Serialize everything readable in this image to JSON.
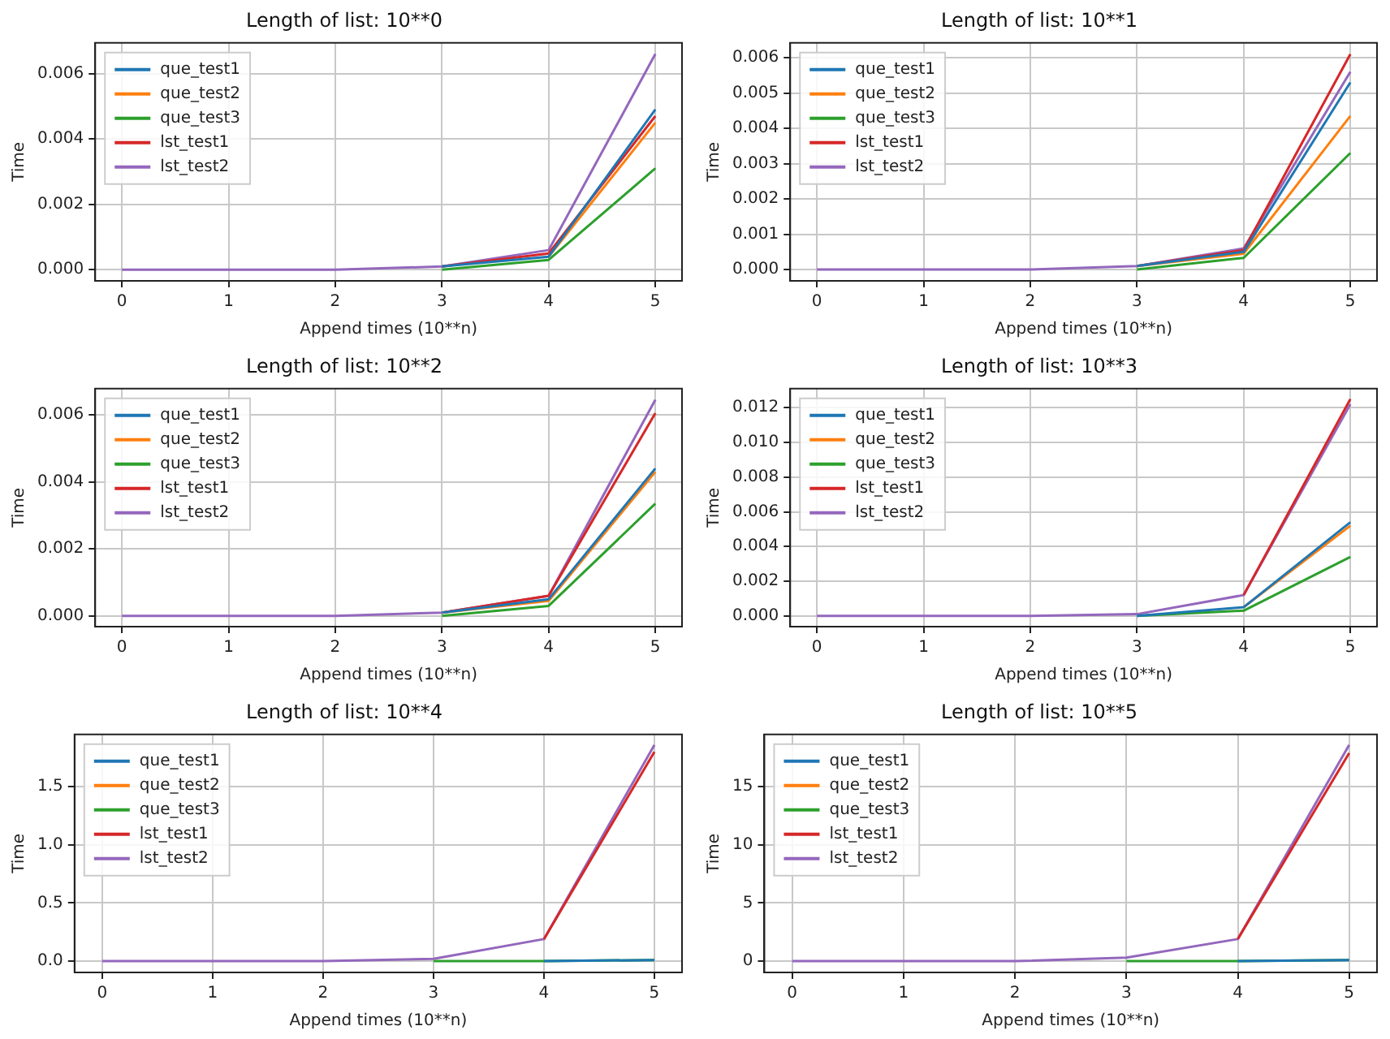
{
  "chart_data": [
    {
      "type": "line",
      "title": "Length of list: 10**0",
      "xlabel": "Append times (10**n)",
      "ylabel": "Time",
      "x": [
        0,
        1,
        2,
        3,
        4,
        5
      ],
      "xlim": [
        -0.25,
        5.25
      ],
      "xticks": [
        0,
        1,
        2,
        3,
        4,
        5
      ],
      "ylim": [
        -0.00034,
        0.00694
      ],
      "yticks": [
        {
          "value": 0,
          "label": "0.000"
        },
        {
          "value": 0.002,
          "label": "0.002"
        },
        {
          "value": 0.004,
          "label": "0.004"
        },
        {
          "value": 0.006,
          "label": "0.006"
        }
      ],
      "grid": true,
      "legend": "top left",
      "line_style": "solid",
      "series": [
        {
          "name": "que_test1",
          "color": "#1f77b4",
          "values": [
            null,
            null,
            null,
            0.0001,
            0.0004,
            0.0049
          ]
        },
        {
          "name": "que_test2",
          "color": "#ff7f0e",
          "values": [
            null,
            null,
            null,
            null,
            0.0004,
            0.0045
          ]
        },
        {
          "name": "que_test3",
          "color": "#2ca02c",
          "values": [
            null,
            null,
            null,
            0,
            0.0003,
            0.0031
          ]
        },
        {
          "name": "lst_test1",
          "color": "#d62728",
          "values": [
            null,
            null,
            null,
            0.0001,
            0.0005,
            0.0047
          ]
        },
        {
          "name": "lst_test2",
          "color": "#9467bd",
          "values": [
            0,
            0,
            0,
            0.0001,
            0.0006,
            0.0066
          ]
        }
      ]
    },
    {
      "type": "line",
      "title": "Length of list: 10**1",
      "xlabel": "Append times (10**n)",
      "ylabel": "Time",
      "x": [
        0,
        1,
        2,
        3,
        4,
        5
      ],
      "xlim": [
        -0.25,
        5.25
      ],
      "xticks": [
        0,
        1,
        2,
        3,
        4,
        5
      ],
      "ylim": [
        -0.00032,
        0.00642
      ],
      "yticks": [
        {
          "value": 0,
          "label": "0.000"
        },
        {
          "value": 0.001,
          "label": "0.001"
        },
        {
          "value": 0.002,
          "label": "0.002"
        },
        {
          "value": 0.003,
          "label": "0.003"
        },
        {
          "value": 0.004,
          "label": "0.004"
        },
        {
          "value": 0.005,
          "label": "0.005"
        },
        {
          "value": 0.006,
          "label": "0.006"
        }
      ],
      "grid": true,
      "legend": "top left",
      "line_style": "solid",
      "series": [
        {
          "name": "que_test1",
          "color": "#1f77b4",
          "values": [
            null,
            null,
            null,
            0.0001,
            0.0005,
            0.0053
          ]
        },
        {
          "name": "que_test2",
          "color": "#ff7f0e",
          "values": [
            null,
            null,
            null,
            0.0001,
            0.00045,
            0.00435
          ]
        },
        {
          "name": "que_test3",
          "color": "#2ca02c",
          "values": [
            null,
            null,
            null,
            0,
            0.00033,
            0.0033
          ]
        },
        {
          "name": "lst_test1",
          "color": "#d62728",
          "values": [
            null,
            null,
            null,
            0.0001,
            0.00055,
            0.0061
          ]
        },
        {
          "name": "lst_test2",
          "color": "#9467bd",
          "values": [
            0,
            0,
            0,
            0.0001,
            0.0006,
            0.0056
          ]
        }
      ]
    },
    {
      "type": "line",
      "title": "Length of list: 10**2",
      "xlabel": "Append times (10**n)",
      "ylabel": "Time",
      "x": [
        0,
        1,
        2,
        3,
        4,
        5
      ],
      "xlim": [
        -0.25,
        5.25
      ],
      "xticks": [
        0,
        1,
        2,
        3,
        4,
        5
      ],
      "ylim": [
        -0.00032,
        0.00678
      ],
      "yticks": [
        {
          "value": 0,
          "label": "0.000"
        },
        {
          "value": 0.002,
          "label": "0.002"
        },
        {
          "value": 0.004,
          "label": "0.004"
        },
        {
          "value": 0.006,
          "label": "0.006"
        }
      ],
      "grid": true,
      "legend": "top left",
      "line_style": "solid",
      "series": [
        {
          "name": "que_test1",
          "color": "#1f77b4",
          "values": [
            null,
            null,
            null,
            0.0001,
            0.0005,
            0.0044
          ]
        },
        {
          "name": "que_test2",
          "color": "#ff7f0e",
          "values": [
            null,
            null,
            null,
            0.0001,
            0.00045,
            0.0043
          ]
        },
        {
          "name": "que_test3",
          "color": "#2ca02c",
          "values": [
            null,
            null,
            null,
            0,
            0.0003,
            0.00335
          ]
        },
        {
          "name": "lst_test1",
          "color": "#d62728",
          "values": [
            null,
            null,
            null,
            0.0001,
            0.0006,
            0.00605
          ]
        },
        {
          "name": "lst_test2",
          "color": "#9467bd",
          "values": [
            0,
            0,
            0,
            0.0001,
            0.0006,
            0.00645
          ]
        }
      ]
    },
    {
      "type": "line",
      "title": "Length of list: 10**3",
      "xlabel": "Append times (10**n)",
      "ylabel": "Time",
      "x": [
        0,
        1,
        2,
        3,
        4,
        5
      ],
      "xlim": [
        -0.25,
        5.25
      ],
      "xticks": [
        0,
        1,
        2,
        3,
        4,
        5
      ],
      "ylim": [
        -0.00062,
        0.0131
      ],
      "yticks": [
        {
          "value": 0,
          "label": "0.000"
        },
        {
          "value": 0.002,
          "label": "0.002"
        },
        {
          "value": 0.004,
          "label": "0.004"
        },
        {
          "value": 0.006,
          "label": "0.006"
        },
        {
          "value": 0.008,
          "label": "0.008"
        },
        {
          "value": 0.01,
          "label": "0.010"
        },
        {
          "value": 0.012,
          "label": "0.012"
        }
      ],
      "grid": true,
      "legend": "top left",
      "line_style": "solid",
      "series": [
        {
          "name": "que_test1",
          "color": "#1f77b4",
          "values": [
            null,
            null,
            null,
            0,
            0.0005,
            0.0054
          ]
        },
        {
          "name": "que_test2",
          "color": "#ff7f0e",
          "values": [
            null,
            null,
            null,
            null,
            0.0005,
            0.0052
          ]
        },
        {
          "name": "que_test3",
          "color": "#2ca02c",
          "values": [
            null,
            null,
            null,
            0,
            0.0003,
            0.0034
          ]
        },
        {
          "name": "lst_test1",
          "color": "#d62728",
          "values": [
            null,
            null,
            null,
            null,
            0.0012,
            0.0125
          ]
        },
        {
          "name": "lst_test2",
          "color": "#9467bd",
          "values": [
            0,
            0,
            0,
            0.0001,
            0.0012,
            0.0122
          ]
        }
      ]
    },
    {
      "type": "line",
      "title": "Length of list: 10**4",
      "xlabel": "Append times (10**n)",
      "ylabel": "Time",
      "x": [
        0,
        1,
        2,
        3,
        4,
        5
      ],
      "xlim": [
        -0.25,
        5.25
      ],
      "xticks": [
        0,
        1,
        2,
        3,
        4,
        5
      ],
      "ylim": [
        -0.097,
        1.95
      ],
      "yticks": [
        {
          "value": 0,
          "label": "0.0"
        },
        {
          "value": 0.5,
          "label": "0.5"
        },
        {
          "value": 1,
          "label": "1.0"
        },
        {
          "value": 1.5,
          "label": "1.5"
        }
      ],
      "grid": true,
      "legend": "top left",
      "line_style": "solid",
      "series": [
        {
          "name": "que_test1",
          "color": "#1f77b4",
          "values": [
            null,
            null,
            null,
            null,
            0,
            0.01
          ]
        },
        {
          "name": "que_test2",
          "color": "#ff7f0e",
          "values": [
            null,
            null,
            null,
            null,
            null,
            null
          ]
        },
        {
          "name": "que_test3",
          "color": "#2ca02c",
          "values": [
            null,
            null,
            null,
            0,
            0,
            0.01
          ]
        },
        {
          "name": "lst_test1",
          "color": "#d62728",
          "values": [
            null,
            null,
            null,
            null,
            0.19,
            1.8
          ]
        },
        {
          "name": "lst_test2",
          "color": "#9467bd",
          "values": [
            0,
            0,
            0,
            0.02,
            0.19,
            1.86
          ]
        }
      ]
    },
    {
      "type": "line",
      "title": "Length of list: 10**5",
      "xlabel": "Append times (10**n)",
      "ylabel": "Time",
      "x": [
        0,
        1,
        2,
        3,
        4,
        5
      ],
      "xlim": [
        -0.25,
        5.25
      ],
      "xticks": [
        0,
        1,
        2,
        3,
        4,
        5
      ],
      "ylim": [
        -0.97,
        19.5
      ],
      "yticks": [
        0,
        5,
        10,
        15
      ],
      "grid": true,
      "legend": "top left",
      "line_style": "solid",
      "series": [
        {
          "name": "que_test1",
          "color": "#1f77b4",
          "values": [
            null,
            null,
            null,
            null,
            0,
            0.1
          ]
        },
        {
          "name": "que_test2",
          "color": "#ff7f0e",
          "values": [
            null,
            null,
            null,
            null,
            null,
            null
          ]
        },
        {
          "name": "que_test3",
          "color": "#2ca02c",
          "values": [
            null,
            null,
            null,
            0,
            0,
            0.1
          ]
        },
        {
          "name": "lst_test1",
          "color": "#d62728",
          "values": [
            null,
            null,
            null,
            null,
            1.9,
            17.9
          ]
        },
        {
          "name": "lst_test2",
          "color": "#9467bd",
          "values": [
            0,
            0,
            0,
            0.3,
            1.9,
            18.6
          ]
        }
      ]
    }
  ]
}
